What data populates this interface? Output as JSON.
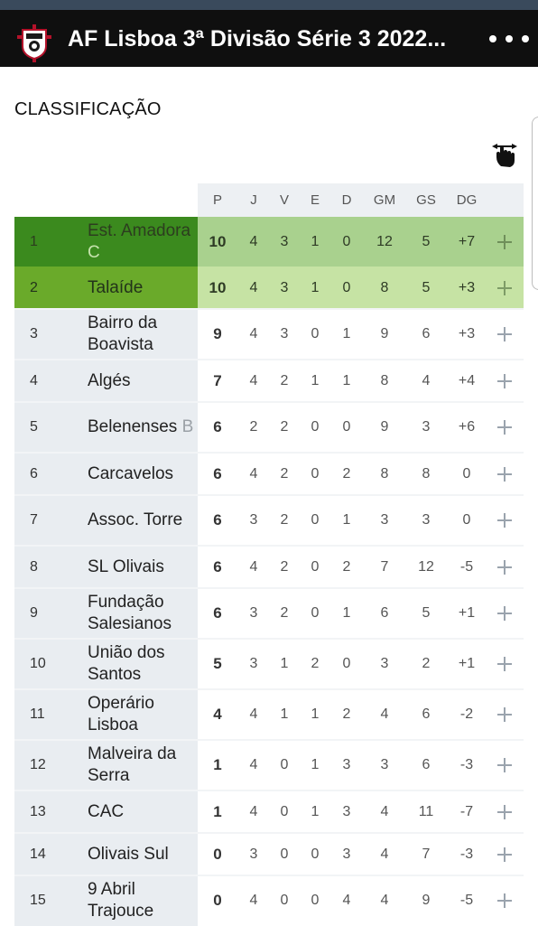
{
  "app": {
    "title": "AF Lisboa 3ª Divisão Série 3 2022...",
    "more_icon": "more-horizontal-icon",
    "logo_icon": "club-crest-icon"
  },
  "section_title": "CLASSIFICAÇÃO",
  "swipe_icon": "swipe-hand-icon",
  "colors": {
    "appbar": "#0f0f0f",
    "statusbar": "#3a4a5c",
    "rank1_team": "#3b8a1e",
    "rank1_stats": "#a9d18e",
    "rank2_team": "#6aaa2a",
    "rank2_stats": "#c6e3a4",
    "team_column": "#e9edf1"
  },
  "columns": [
    "P",
    "J",
    "V",
    "E",
    "D",
    "GM",
    "GS",
    "DG"
  ],
  "rows": [
    {
      "pos": "1",
      "name": "Est. Amadora",
      "suffix": "C",
      "P": "10",
      "J": "4",
      "V": "3",
      "E": "1",
      "D": "0",
      "GM": "12",
      "GS": "5",
      "DG": "+7"
    },
    {
      "pos": "2",
      "name": "Talaíde",
      "suffix": "",
      "P": "10",
      "J": "4",
      "V": "3",
      "E": "1",
      "D": "0",
      "GM": "8",
      "GS": "5",
      "DG": "+3"
    },
    {
      "pos": "3",
      "name": "Bairro da Boavista",
      "suffix": "",
      "P": "9",
      "J": "4",
      "V": "3",
      "E": "0",
      "D": "1",
      "GM": "9",
      "GS": "6",
      "DG": "+3"
    },
    {
      "pos": "4",
      "name": "Algés",
      "suffix": "",
      "P": "7",
      "J": "4",
      "V": "2",
      "E": "1",
      "D": "1",
      "GM": "8",
      "GS": "4",
      "DG": "+4"
    },
    {
      "pos": "5",
      "name": "Belenenses",
      "suffix": "B",
      "P": "6",
      "J": "2",
      "V": "2",
      "E": "0",
      "D": "0",
      "GM": "9",
      "GS": "3",
      "DG": "+6"
    },
    {
      "pos": "6",
      "name": "Carcavelos",
      "suffix": "",
      "P": "6",
      "J": "4",
      "V": "2",
      "E": "0",
      "D": "2",
      "GM": "8",
      "GS": "8",
      "DG": "0"
    },
    {
      "pos": "7",
      "name": "Assoc. Torre",
      "suffix": "",
      "P": "6",
      "J": "3",
      "V": "2",
      "E": "0",
      "D": "1",
      "GM": "3",
      "GS": "3",
      "DG": "0"
    },
    {
      "pos": "8",
      "name": "SL Olivais",
      "suffix": "",
      "P": "6",
      "J": "4",
      "V": "2",
      "E": "0",
      "D": "2",
      "GM": "7",
      "GS": "12",
      "DG": "-5"
    },
    {
      "pos": "9",
      "name": "Fundação Salesianos",
      "suffix": "",
      "P": "6",
      "J": "3",
      "V": "2",
      "E": "0",
      "D": "1",
      "GM": "6",
      "GS": "5",
      "DG": "+1"
    },
    {
      "pos": "10",
      "name": "União dos Santos",
      "suffix": "",
      "P": "5",
      "J": "3",
      "V": "1",
      "E": "2",
      "D": "0",
      "GM": "3",
      "GS": "2",
      "DG": "+1"
    },
    {
      "pos": "11",
      "name": "Operário Lisboa",
      "suffix": "",
      "P": "4",
      "J": "4",
      "V": "1",
      "E": "1",
      "D": "2",
      "GM": "4",
      "GS": "6",
      "DG": "-2"
    },
    {
      "pos": "12",
      "name": "Malveira da Serra",
      "suffix": "",
      "P": "1",
      "J": "4",
      "V": "0",
      "E": "1",
      "D": "3",
      "GM": "3",
      "GS": "6",
      "DG": "-3"
    },
    {
      "pos": "13",
      "name": "CAC",
      "suffix": "",
      "P": "1",
      "J": "4",
      "V": "0",
      "E": "1",
      "D": "3",
      "GM": "4",
      "GS": "11",
      "DG": "-7"
    },
    {
      "pos": "14",
      "name": "Olivais Sul",
      "suffix": "",
      "P": "0",
      "J": "3",
      "V": "0",
      "E": "0",
      "D": "3",
      "GM": "4",
      "GS": "7",
      "DG": "-3"
    },
    {
      "pos": "15",
      "name": "9 Abril Trajouce",
      "suffix": "",
      "P": "0",
      "J": "4",
      "V": "0",
      "E": "0",
      "D": "4",
      "GM": "4",
      "GS": "9",
      "DG": "-5"
    }
  ]
}
